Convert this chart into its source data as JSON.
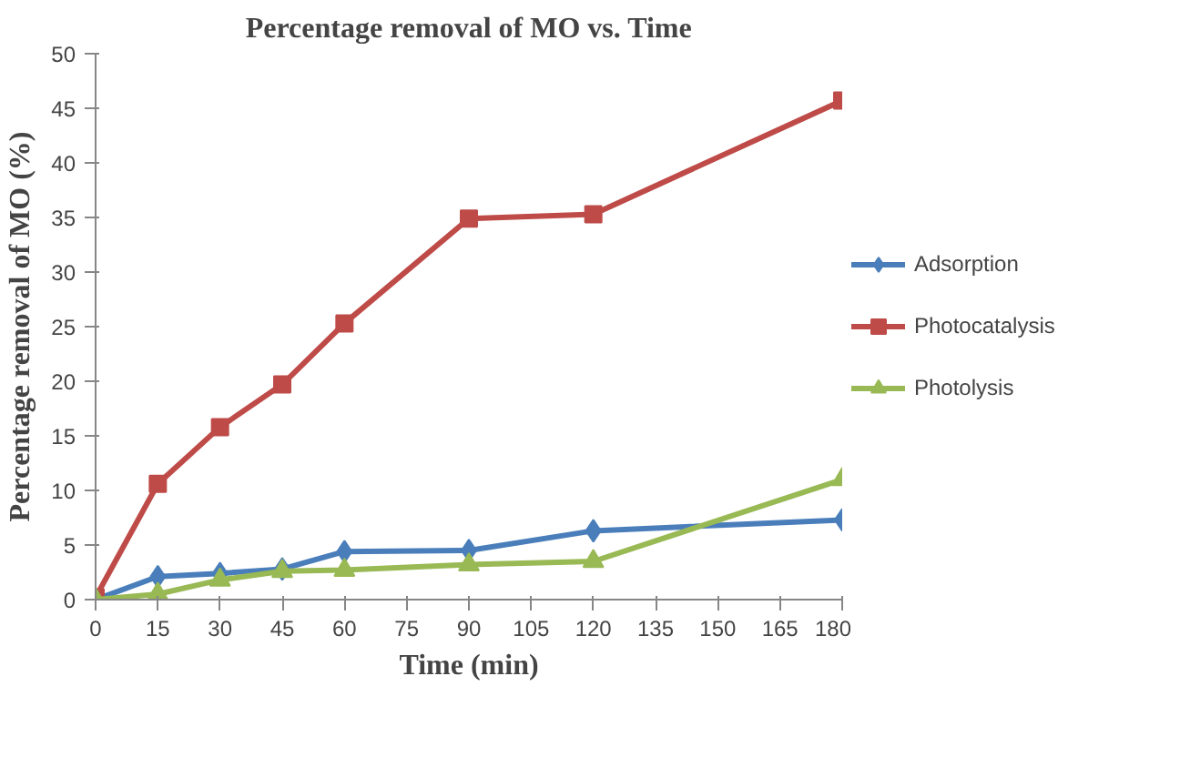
{
  "chart_data": {
    "type": "line",
    "title": "Percentage removal of MO vs. Time",
    "xlabel": "Time (min)",
    "ylabel": "Percentage removal of MO (%)",
    "xlim": [
      0,
      180
    ],
    "xticks": [
      0,
      15,
      30,
      45,
      60,
      75,
      90,
      105,
      120,
      135,
      150,
      165,
      180
    ],
    "ylim": [
      0,
      50
    ],
    "yticks": [
      0,
      5,
      10,
      15,
      20,
      25,
      30,
      35,
      40,
      45,
      50
    ],
    "grid": false,
    "legend": "right",
    "series": [
      {
        "name": "Adsorption",
        "color": "#4a7ebb",
        "marker": "diamond",
        "x": [
          0,
          15,
          30,
          45,
          60,
          90,
          120,
          180
        ],
        "values": [
          0,
          2.1,
          2.4,
          2.8,
          4.4,
          4.5,
          6.3,
          7.3
        ]
      },
      {
        "name": "Photocatalysis",
        "color": "#be4b48",
        "marker": "square",
        "x": [
          0,
          15,
          30,
          45,
          60,
          90,
          120,
          180
        ],
        "values": [
          0.2,
          10.6,
          15.8,
          19.7,
          25.3,
          34.9,
          35.3,
          45.7
        ]
      },
      {
        "name": "Photolysis",
        "color": "#98b954",
        "marker": "triangle",
        "x": [
          0,
          15,
          30,
          45,
          60,
          90,
          120,
          180
        ],
        "values": [
          0,
          0.5,
          1.8,
          2.6,
          2.7,
          3.2,
          3.5,
          11
        ]
      }
    ]
  }
}
